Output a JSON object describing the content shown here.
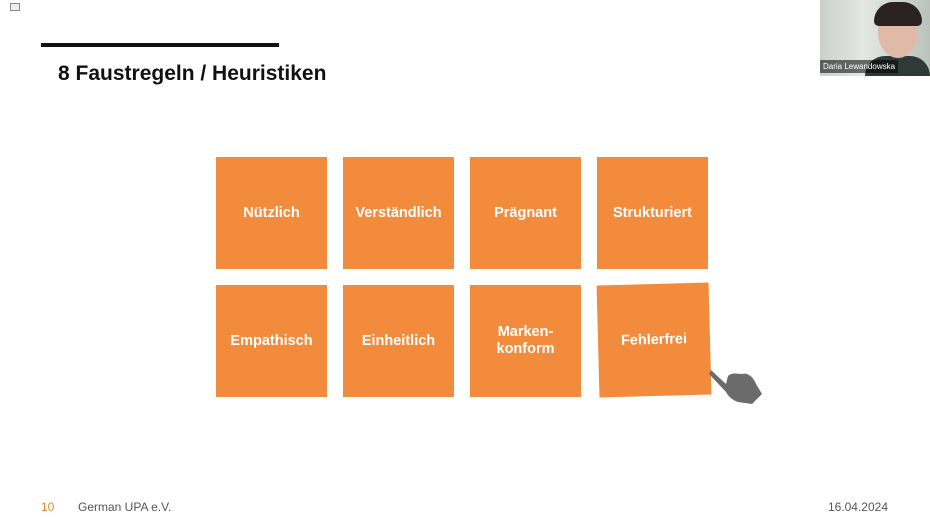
{
  "slide": {
    "title": "8 Faustregeln / Heuristiken",
    "tiles": [
      {
        "label": "Nützlich"
      },
      {
        "label": "Verständlich"
      },
      {
        "label": "Prägnant"
      },
      {
        "label": "Strukturiert"
      },
      {
        "label": "Empathisch"
      },
      {
        "label": "Einheitlich"
      },
      {
        "label": "Marken-\nkonform"
      },
      {
        "label": "Fehlerfrei"
      }
    ],
    "accent_color": "#F28C3C"
  },
  "footer": {
    "page_number": "10",
    "organization": "German UPA e.V.",
    "date": "16.04.2024"
  },
  "video": {
    "participant_name": "Daria Lewandowska"
  }
}
